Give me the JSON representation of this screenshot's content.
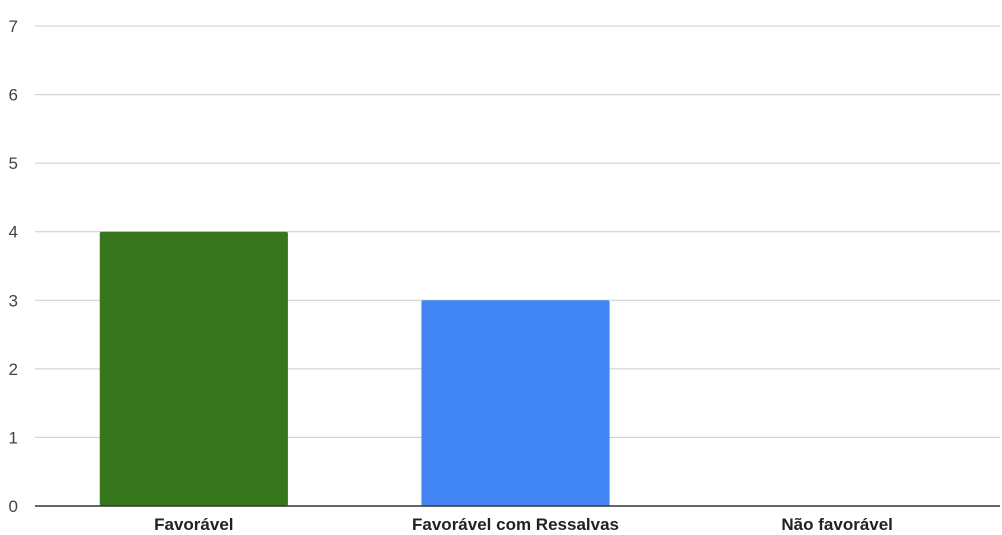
{
  "chart_data": {
    "type": "bar",
    "categories": [
      "Favorável",
      "Favorável com Ressalvas",
      "Não favorável"
    ],
    "values": [
      4,
      3,
      0
    ],
    "colors": [
      "#38761d",
      "#4285f4",
      "#4285f4"
    ],
    "ylim": [
      0,
      7
    ],
    "yticks": [
      "0",
      "1",
      "2",
      "3",
      "4",
      "5",
      "6",
      "7"
    ],
    "grid": true,
    "legend": "none"
  }
}
